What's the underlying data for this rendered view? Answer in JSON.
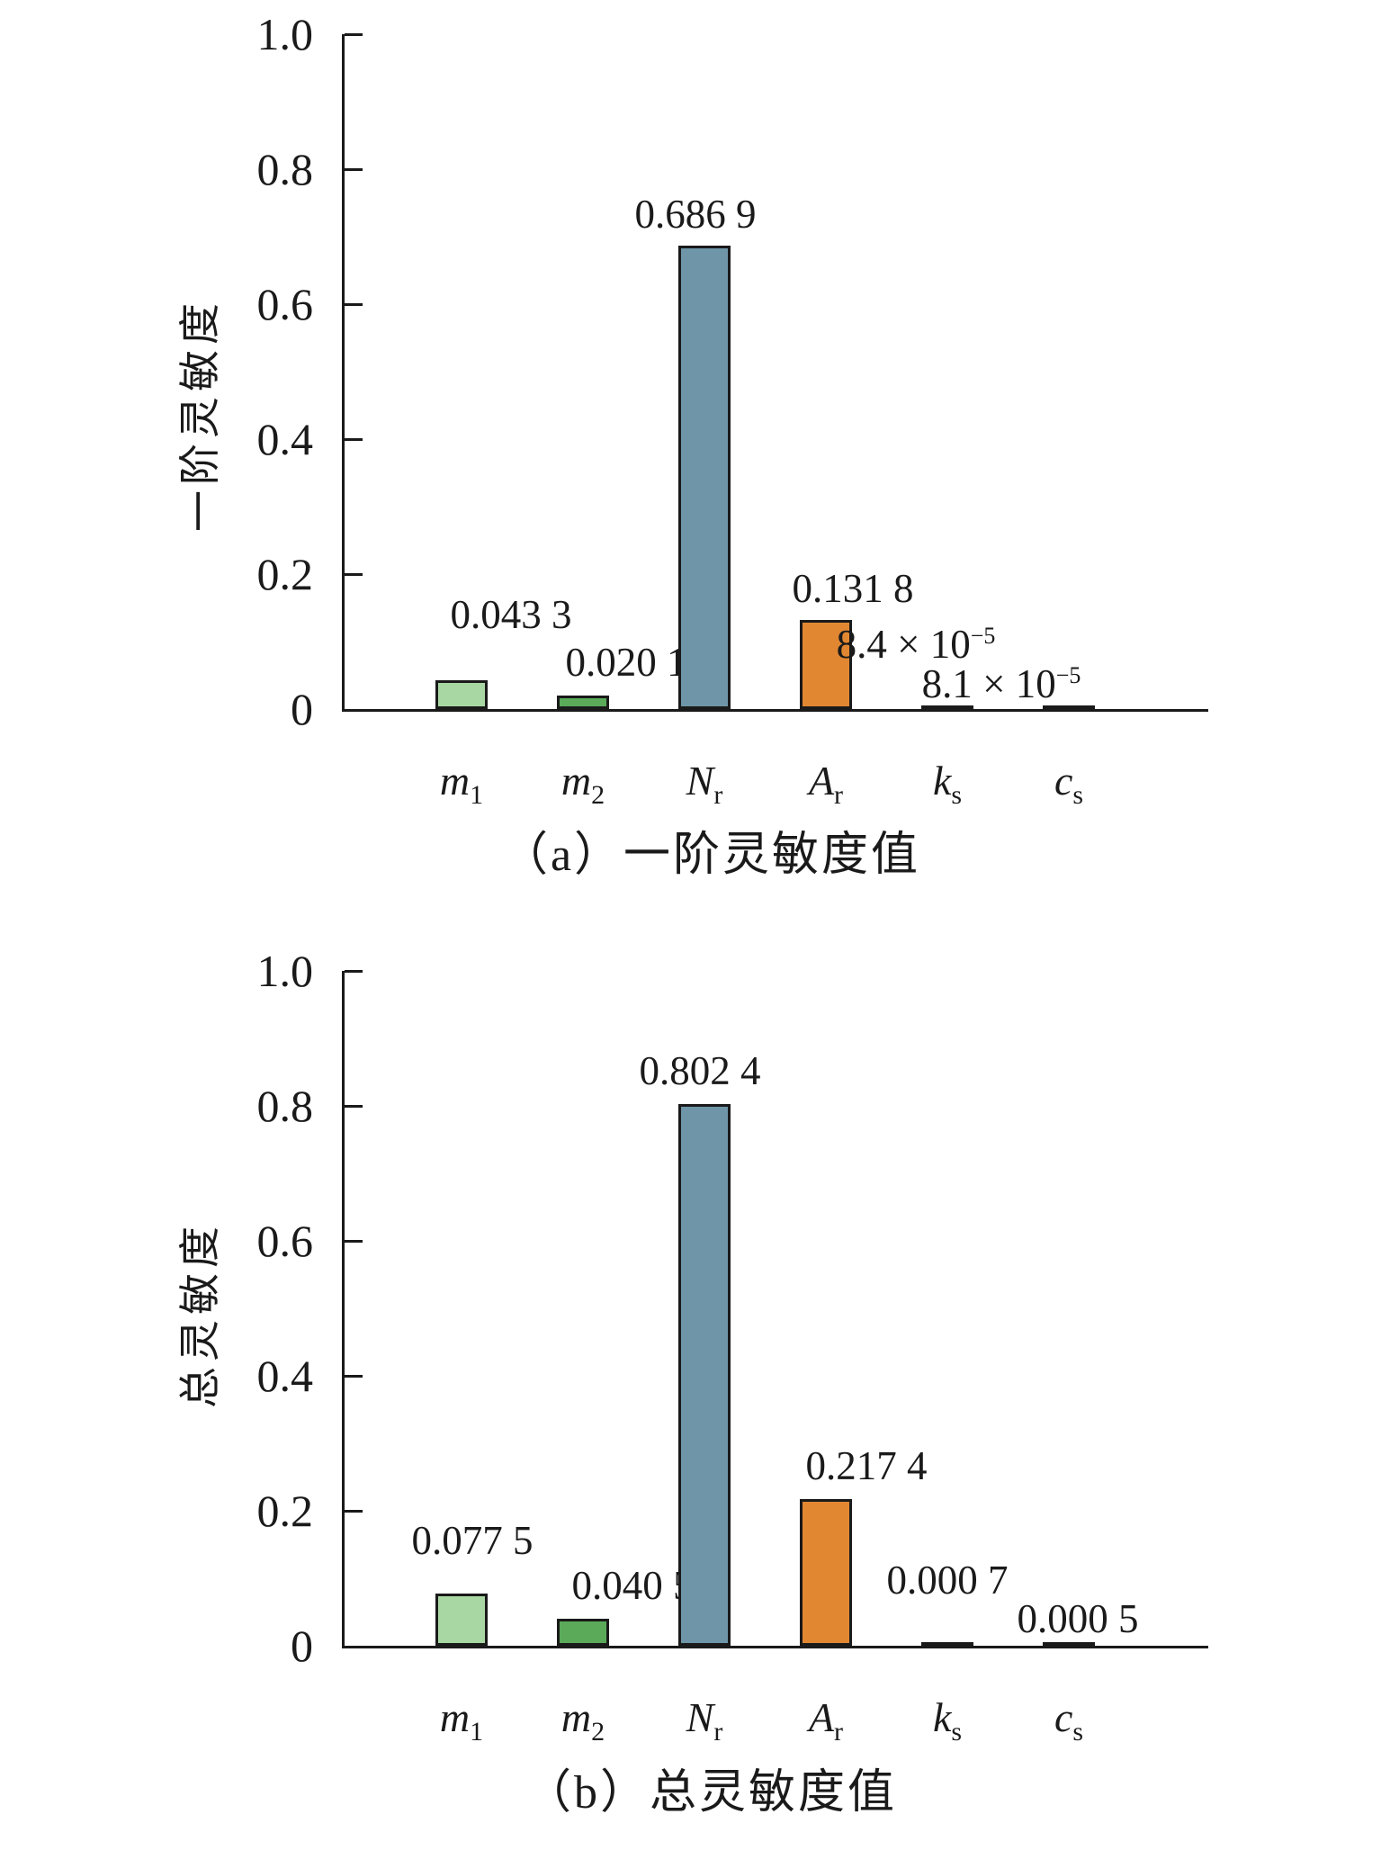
{
  "figure": {
    "background": "#ffffff",
    "text_color": "#1a1a1a",
    "axis_color": "#1a1a1a"
  },
  "chart_data": [
    {
      "type": "bar",
      "panel": "a",
      "title": "（a）一阶灵敏度值",
      "ylabel": "一阶灵敏度",
      "xlabel": "",
      "ylim": [
        0,
        1.0
      ],
      "ytick_labels": [
        "1.0",
        "0.8",
        "0.6",
        "0.4",
        "0.2",
        "0"
      ],
      "grid": false,
      "legend": null,
      "categories": [
        "m1",
        "m2",
        "Nr",
        "Ar",
        "ks",
        "cs"
      ],
      "category_labels": [
        {
          "base": "m",
          "sub": "1"
        },
        {
          "base": "m",
          "sub": "2"
        },
        {
          "base": "N",
          "sub": "r"
        },
        {
          "base": "A",
          "sub": "r"
        },
        {
          "base": "k",
          "sub": "s"
        },
        {
          "base": "c",
          "sub": "s"
        }
      ],
      "values": [
        0.0433,
        0.0201,
        0.6869,
        0.1318,
        8.4e-05,
        8.1e-05
      ],
      "value_labels": [
        {
          "main": "0.043 3",
          "sup": ""
        },
        {
          "main": "0.020 1",
          "sup": ""
        },
        {
          "main": "0.686 9",
          "sup": ""
        },
        {
          "main": "0.131 8",
          "sup": ""
        },
        {
          "main": "8.4 × 10",
          "sup": "−5"
        },
        {
          "main": "8.1 × 10",
          "sup": "−5"
        }
      ],
      "bar_colors": [
        "#a9d7a3",
        "#5aaa5a",
        "#6e96a8",
        "#e18731",
        "#1a1a1a",
        "#1a1a1a"
      ],
      "bar_edge_color": "#1a1a1a"
    },
    {
      "type": "bar",
      "panel": "b",
      "title": "（b）总灵敏度值",
      "ylabel": "总灵敏度",
      "xlabel": "",
      "ylim": [
        0,
        1.0
      ],
      "ytick_labels": [
        "1.0",
        "0.8",
        "0.6",
        "0.4",
        "0.2",
        "0"
      ],
      "grid": false,
      "legend": null,
      "categories": [
        "m1",
        "m2",
        "Nr",
        "Ar",
        "ks",
        "cs"
      ],
      "category_labels": [
        {
          "base": "m",
          "sub": "1"
        },
        {
          "base": "m",
          "sub": "2"
        },
        {
          "base": "N",
          "sub": "r"
        },
        {
          "base": "A",
          "sub": "r"
        },
        {
          "base": "k",
          "sub": "s"
        },
        {
          "base": "c",
          "sub": "s"
        }
      ],
      "values": [
        0.0775,
        0.0405,
        0.8024,
        0.2174,
        0.0007,
        0.0005
      ],
      "value_labels": [
        {
          "main": "0.077 5",
          "sup": ""
        },
        {
          "main": "0.040 5",
          "sup": ""
        },
        {
          "main": "0.802 4",
          "sup": ""
        },
        {
          "main": "0.217 4",
          "sup": ""
        },
        {
          "main": "0.000 7",
          "sup": ""
        },
        {
          "main": "0.000 5",
          "sup": ""
        }
      ],
      "bar_colors": [
        "#a9d7a3",
        "#5aaa5a",
        "#6e96a8",
        "#e18731",
        "#1a1a1a",
        "#1a1a1a"
      ],
      "bar_edge_color": "#1a1a1a"
    }
  ]
}
